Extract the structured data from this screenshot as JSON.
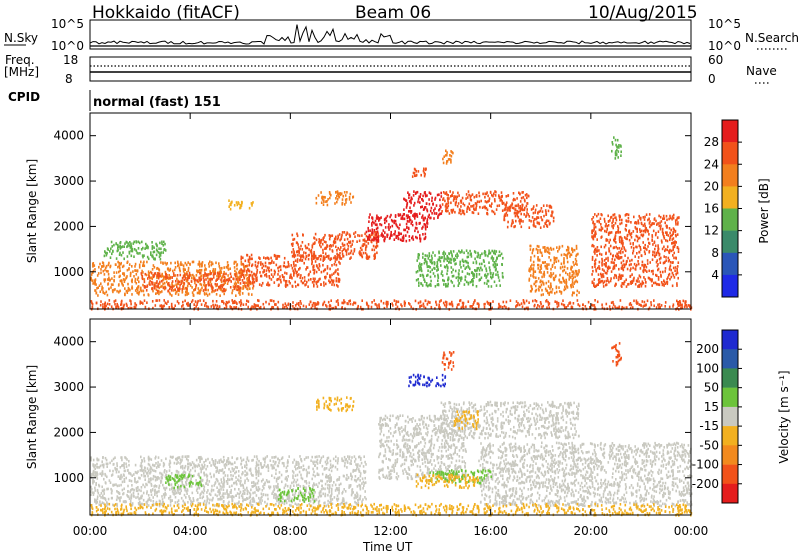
{
  "header": {
    "station": "Hokkaido (fitACF)",
    "beam": "Beam 06",
    "date": "10/Aug/2015"
  },
  "panels": {
    "nsky": {
      "label": "N.Sky",
      "left_ticks": [
        "10^5",
        "10^0"
      ],
      "right_ticks": [
        "10^5",
        "10^0"
      ],
      "right_label": "N.Search",
      "right_label_style": "dotted"
    },
    "freq": {
      "label": "Freq.",
      "unit": "[MHz]",
      "left_ticks": [
        "18",
        "8"
      ],
      "right_ticks": [
        "60",
        "0"
      ],
      "right_label": "Nave",
      "right_label_style": "dotted"
    },
    "cpid": {
      "label": "CPID",
      "value": "normal (fast) 151"
    }
  },
  "x_axis": {
    "label": "Time UT",
    "ticks": [
      "00:00",
      "04:00",
      "08:00",
      "12:00",
      "16:00",
      "20:00",
      "00:00"
    ]
  },
  "chart_data": [
    {
      "type": "heatmap",
      "title": "",
      "xlabel": "Time UT",
      "ylabel": "Slant Range [km]",
      "xlim": [
        0,
        24
      ],
      "ylim": [
        180,
        4500
      ],
      "yticks": [
        "1000",
        "2000",
        "3000",
        "4000"
      ],
      "colorbar": {
        "label": "Power [dB]",
        "ticks": [
          "4",
          "8",
          "12",
          "16",
          "20",
          "24",
          "28"
        ],
        "levels": [
          {
            "min": 0,
            "max": 4,
            "color": "#1f2ae6"
          },
          {
            "min": 4,
            "max": 8,
            "color": "#2a56b8"
          },
          {
            "min": 8,
            "max": 12,
            "color": "#3a8a6a"
          },
          {
            "min": 12,
            "max": 16,
            "color": "#5fb24a"
          },
          {
            "min": 16,
            "max": 20,
            "color": "#f2b020"
          },
          {
            "min": 20,
            "max": 24,
            "color": "#f37f1e"
          },
          {
            "min": 24,
            "max": 28,
            "color": "#f2521a"
          },
          {
            "min": 28,
            "max": 32,
            "color": "#e51d1d"
          }
        ]
      },
      "regions": [
        {
          "t0": 0.0,
          "t1": 6.5,
          "r0": 500,
          "r1": 1250,
          "value": 23
        },
        {
          "t0": 2.0,
          "t1": 6.0,
          "r0": 600,
          "r1": 1000,
          "value": 27
        },
        {
          "t0": 6.0,
          "t1": 10.0,
          "r0": 700,
          "r1": 1400,
          "value": 27
        },
        {
          "t0": 8.0,
          "t1": 11.5,
          "r0": 1300,
          "r1": 1900,
          "value": 26
        },
        {
          "t0": 11.0,
          "t1": 13.5,
          "r0": 1700,
          "r1": 2300,
          "value": 28
        },
        {
          "t0": 12.5,
          "t1": 14.0,
          "r0": 2200,
          "r1": 2800,
          "value": 28
        },
        {
          "t0": 14.0,
          "t1": 17.5,
          "r0": 2300,
          "r1": 2800,
          "value": 24
        },
        {
          "t0": 16.5,
          "t1": 18.5,
          "r0": 2000,
          "r1": 2500,
          "value": 26
        },
        {
          "t0": 17.5,
          "t1": 19.5,
          "r0": 500,
          "r1": 1600,
          "value": 23
        },
        {
          "t0": 20.0,
          "t1": 23.5,
          "r0": 700,
          "r1": 2300,
          "value": 25
        },
        {
          "t0": 13.0,
          "t1": 16.5,
          "r0": 700,
          "r1": 1500,
          "value": 13
        },
        {
          "t0": 0.5,
          "t1": 3.0,
          "r0": 1300,
          "r1": 1700,
          "value": 14
        },
        {
          "t0": 5.5,
          "t1": 6.5,
          "r0": 2400,
          "r1": 2600,
          "value": 19
        },
        {
          "t0": 9.0,
          "t1": 10.5,
          "r0": 2500,
          "r1": 2800,
          "value": 20
        },
        {
          "t0": 12.8,
          "t1": 13.4,
          "r0": 3100,
          "r1": 3350,
          "value": 24
        },
        {
          "t0": 14.0,
          "t1": 14.5,
          "r0": 3400,
          "r1": 3700,
          "value": 22
        },
        {
          "t0": 20.8,
          "t1": 21.2,
          "r0": 3500,
          "r1": 4000,
          "value": 12
        },
        {
          "t0": 0.0,
          "t1": 24.0,
          "r0": 200,
          "r1": 400,
          "value": 26
        }
      ]
    },
    {
      "type": "heatmap",
      "title": "",
      "xlabel": "Time UT",
      "ylabel": "Slant Range [km]",
      "xlim": [
        0,
        24
      ],
      "ylim": [
        180,
        4500
      ],
      "yticks": [
        "1000",
        "2000",
        "3000",
        "4000"
      ],
      "colorbar": {
        "label": "Velocity [m s⁻¹]",
        "ticks": [
          "200",
          "100",
          "50",
          "15",
          "-15",
          "-50",
          "-100",
          "-200"
        ],
        "levels": [
          {
            "min": 200,
            "max": 300,
            "color": "#1f2ad0"
          },
          {
            "min": 100,
            "max": 200,
            "color": "#2a5aa8"
          },
          {
            "min": 50,
            "max": 100,
            "color": "#3a8a50"
          },
          {
            "min": 15,
            "max": 50,
            "color": "#6cc43a"
          },
          {
            "min": -15,
            "max": 15,
            "color": "#c9c9c0"
          },
          {
            "min": -50,
            "max": -15,
            "color": "#f2b020"
          },
          {
            "min": -100,
            "max": -50,
            "color": "#f38a1e"
          },
          {
            "min": -200,
            "max": -100,
            "color": "#f2521a"
          },
          {
            "min": -300,
            "max": -200,
            "color": "#e51d1d"
          }
        ]
      },
      "regions": [
        {
          "t0": 0.0,
          "t1": 11.0,
          "r0": 400,
          "r1": 1500,
          "value": 0
        },
        {
          "t0": 11.5,
          "t1": 15.0,
          "r0": 1000,
          "r1": 2400,
          "value": 0
        },
        {
          "t0": 14.0,
          "t1": 19.5,
          "r0": 1900,
          "r1": 2700,
          "value": 0
        },
        {
          "t0": 15.5,
          "t1": 24.0,
          "r0": 400,
          "r1": 1800,
          "value": 0
        },
        {
          "t0": 3.0,
          "t1": 4.5,
          "r0": 800,
          "r1": 1100,
          "value": 30
        },
        {
          "t0": 7.5,
          "t1": 9.0,
          "r0": 500,
          "r1": 800,
          "value": 30
        },
        {
          "t0": 13.5,
          "t1": 16.0,
          "r0": 900,
          "r1": 1200,
          "value": 30
        },
        {
          "t0": 14.5,
          "t1": 15.5,
          "r0": 2100,
          "r1": 2500,
          "value": -30
        },
        {
          "t0": 13.0,
          "t1": 15.5,
          "r0": 800,
          "r1": 1100,
          "value": -30
        },
        {
          "t0": 0.0,
          "t1": 24.0,
          "r0": 200,
          "r1": 450,
          "value": -30
        },
        {
          "t0": 12.7,
          "t1": 14.2,
          "r0": 3050,
          "r1": 3300,
          "value": 250
        },
        {
          "t0": 14.0,
          "t1": 14.5,
          "r0": 3400,
          "r1": 3800,
          "value": -150
        },
        {
          "t0": 9.0,
          "t1": 10.5,
          "r0": 2500,
          "r1": 2800,
          "value": -30
        },
        {
          "t0": 20.8,
          "t1": 21.2,
          "r0": 3500,
          "r1": 4000,
          "value": -150
        }
      ]
    }
  ]
}
